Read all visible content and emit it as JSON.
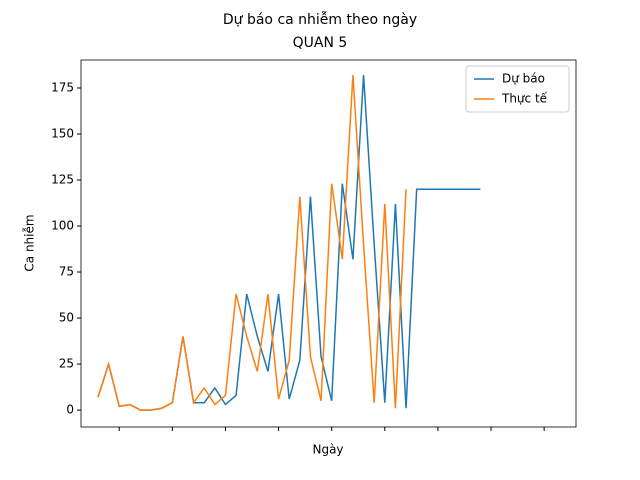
{
  "chart_data": {
    "type": "line",
    "title": "Dự báo ca nhiễm theo ngày",
    "subtitle": "QUAN 5",
    "x_label": "Ngày",
    "y_label": "Ca nhiễm",
    "x": [
      0,
      1,
      2,
      3,
      4,
      5,
      6,
      7,
      8,
      9,
      10,
      11,
      12,
      13,
      14,
      15,
      16,
      17,
      18,
      19,
      20,
      21,
      22,
      23,
      24,
      25,
      26,
      27,
      28,
      29,
      30,
      31,
      32,
      33,
      34,
      35,
      36
    ],
    "series": [
      {
        "name": "Dự báo",
        "color": "#1f77b4",
        "values": [
          7,
          25,
          2,
          3,
          0,
          0,
          1,
          4,
          40,
          4,
          4,
          12,
          3,
          8,
          63,
          40,
          21,
          63,
          6,
          27,
          116,
          29,
          5,
          123,
          82,
          182,
          90,
          4,
          112,
          1,
          120,
          120,
          120,
          120,
          120,
          120,
          120
        ]
      },
      {
        "name": "Thực tế",
        "color": "#ff7f0e",
        "values": [
          7,
          25,
          2,
          3,
          0,
          0,
          1,
          4,
          40,
          4,
          12,
          3,
          8,
          63,
          40,
          21,
          63,
          6,
          27,
          116,
          29,
          5,
          123,
          82,
          182,
          90,
          4,
          112,
          1,
          120,
          null,
          null,
          null,
          null,
          null,
          null,
          null
        ]
      }
    ],
    "xlim": [
      -1.6,
      45
    ],
    "xticks": [
      2,
      7,
      12,
      17,
      22,
      27,
      32,
      37,
      42
    ],
    "ylim": [
      -9.2,
      190.2
    ],
    "yticks": [
      0,
      25,
      50,
      75,
      100,
      125,
      150,
      175
    ],
    "legend": "upper right"
  }
}
